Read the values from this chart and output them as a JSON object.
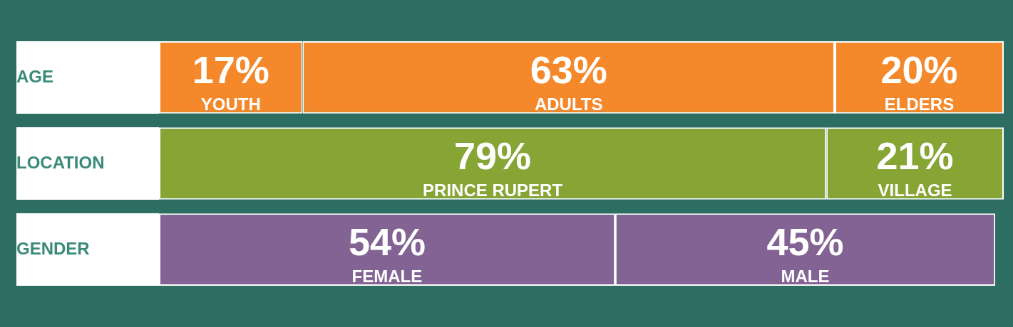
{
  "chart_data": {
    "type": "bar",
    "orientation": "horizontal",
    "stacked": true,
    "categories": [
      "AGE",
      "LOCATION",
      "GENDER"
    ],
    "series": [
      {
        "name": "YOUTH",
        "color": "#f5882a",
        "values": [
          17,
          null,
          null
        ],
        "value_labels": [
          "17%",
          null,
          null
        ]
      },
      {
        "name": "ADULTS",
        "color": "#f5882a",
        "values": [
          63,
          null,
          null
        ],
        "value_labels": [
          "63%",
          null,
          null
        ]
      },
      {
        "name": "ELDERS",
        "color": "#f5882a",
        "values": [
          20,
          null,
          null
        ],
        "value_labels": [
          "20%",
          null,
          null
        ]
      },
      {
        "name": "PRINCE RUPERT",
        "color": "#86a534",
        "values": [
          null,
          79,
          null
        ],
        "value_labels": [
          null,
          "79%",
          null
        ]
      },
      {
        "name": "VILLAGE",
        "color": "#86a534",
        "values": [
          null,
          21,
          null
        ],
        "value_labels": [
          null,
          "21%",
          null
        ]
      },
      {
        "name": "FEMALE",
        "color": "#826394",
        "values": [
          null,
          null,
          54
        ],
        "value_labels": [
          null,
          null,
          "54%"
        ]
      },
      {
        "name": "MALE",
        "color": "#826394",
        "values": [
          null,
          null,
          45
        ],
        "value_labels": [
          null,
          null,
          "45%"
        ]
      }
    ],
    "grid": false,
    "legend": false,
    "tick_labels": "y"
  }
}
